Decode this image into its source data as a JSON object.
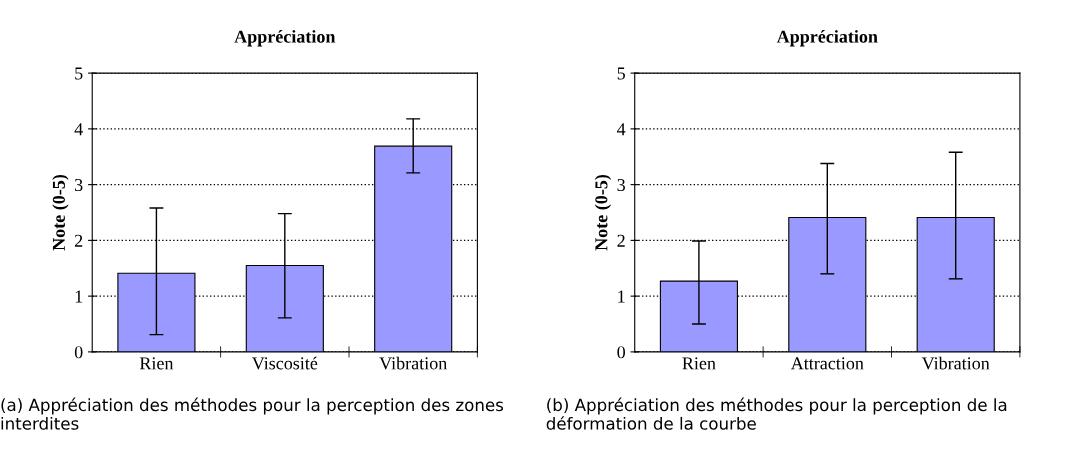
{
  "chart_data": [
    {
      "type": "bar",
      "title": "Appréciation",
      "ylabel": "Note (0-5)",
      "categories": [
        "Rien",
        "Viscosité",
        "Vibration"
      ],
      "values": [
        1.41,
        1.55,
        3.69
      ],
      "color": "#9999ff",
      "errors": [
        [
          0.31,
          2.58
        ],
        [
          0.61,
          2.48
        ],
        [
          3.21,
          4.18
        ]
      ],
      "ylim": [
        0,
        5
      ],
      "yticks": [
        0,
        1,
        2,
        3,
        4,
        5
      ],
      "grid": "y",
      "annotations": [
        "(a) Appréciation des méthodes pour la perception des zones interdites"
      ]
    },
    {
      "type": "bar",
      "title": "Appréciation",
      "ylabel": "Note (0-5)",
      "categories": [
        "Rien",
        "Attraction",
        "Vibration"
      ],
      "values": [
        1.27,
        2.41,
        2.41
      ],
      "color": "#9999ff",
      "errors": [
        [
          0.5,
          1.99
        ],
        [
          1.4,
          3.38
        ],
        [
          1.31,
          3.58
        ]
      ],
      "ylim": [
        0,
        5
      ],
      "yticks": [
        0,
        1,
        2,
        3,
        4,
        5
      ],
      "grid": "y",
      "annotations": [
        "(b) Appréciation des méthodes pour la perception de la déformation de la courbe"
      ]
    }
  ]
}
